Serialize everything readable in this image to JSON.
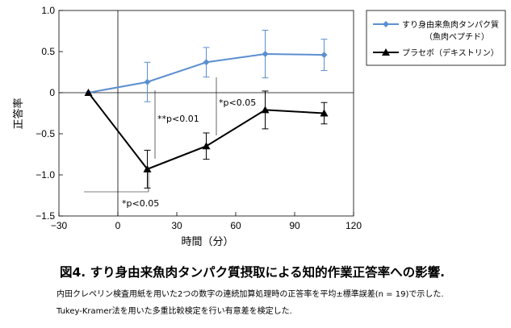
{
  "chart_data": {
    "type": "line",
    "xlabel": "時間（分）",
    "ylabel": "正答率",
    "xlim": [
      -30,
      120
    ],
    "ylim": [
      -1.5,
      1.0
    ],
    "xticks": [
      -30,
      0,
      30,
      60,
      90,
      120
    ],
    "yticks": [
      -1.5,
      -1.0,
      -0.5,
      0,
      0.5,
      1.0
    ],
    "xtick_labels": [
      "−30",
      "0",
      "30",
      "60",
      "90",
      "120"
    ],
    "ytick_labels": [
      "−1.5",
      "−1.0",
      "−0.5",
      "0",
      "0.5",
      "1.0"
    ],
    "series": [
      {
        "name": "すり身由来魚肉タンパク質",
        "name_line2": "（魚肉ペプチド）",
        "color": "#5b8fd0",
        "marker": "diamond",
        "x": [
          -15,
          15,
          45,
          75,
          105
        ],
        "values": [
          0,
          0.13,
          0.37,
          0.47,
          0.46
        ],
        "err": [
          0,
          0.24,
          0.18,
          0.29,
          0.19
        ]
      },
      {
        "name": "プラセボ（デキストリン）",
        "color": "#000000",
        "marker": "triangle",
        "x": [
          -15,
          15,
          45,
          75,
          105
        ],
        "values": [
          0,
          -0.93,
          -0.65,
          -0.21,
          -0.25
        ],
        "err": [
          0,
          0.23,
          0.16,
          0.23,
          0.13
        ]
      }
    ],
    "annotations": [
      {
        "text": "**p<0.01"
      },
      {
        "text": "*p<0.05"
      },
      {
        "text": "*p<0.05"
      }
    ]
  },
  "caption": {
    "title": "図4. すり身由来魚肉タンパク質摂取による知的作業正答率への影響.",
    "line1": "内田クレペリン検査用紙を用いた2つの数字の連続加算処理時の正答率を平均±標準誤差(n = 19)で示した.",
    "line2": "Tukey-Kramer法を用いた多重比較検定を行い有意差を検定した."
  }
}
